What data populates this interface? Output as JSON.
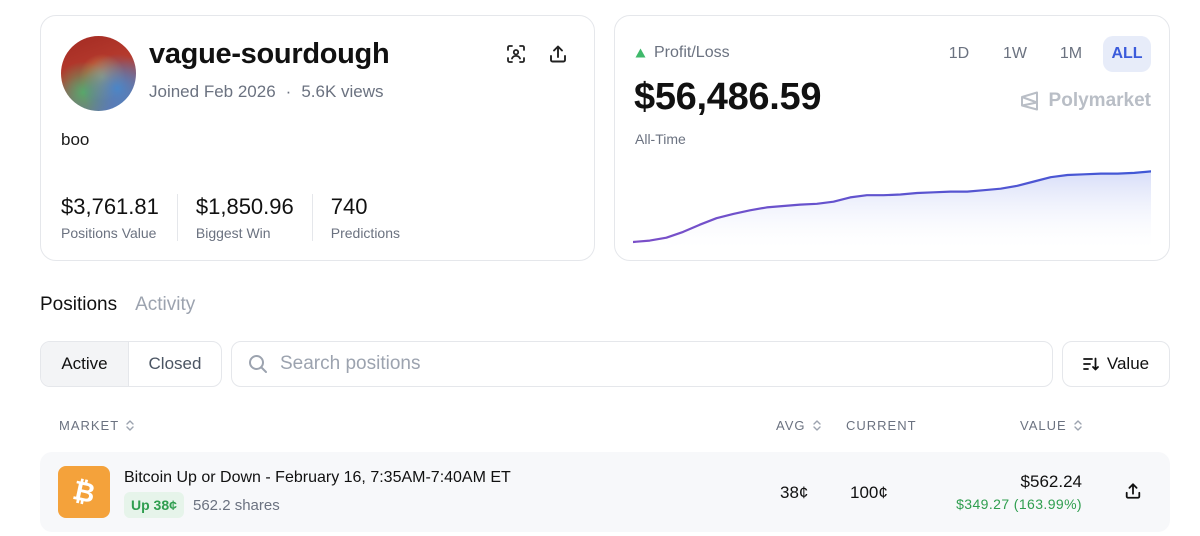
{
  "profile": {
    "username": "vague-sourdough",
    "joined": "Joined Feb 2026",
    "separator": "·",
    "views": "5.6K views",
    "bio": "boo",
    "stats": [
      {
        "value": "$3,761.81",
        "label": "Positions Value"
      },
      {
        "value": "$1,850.96",
        "label": "Biggest Win"
      },
      {
        "value": "740",
        "label": "Predictions"
      }
    ]
  },
  "pnl": {
    "label": "Profit/Loss",
    "value": "$56,486.59",
    "period": "All-Time",
    "brand": "Polymarket",
    "ranges": [
      "1D",
      "1W",
      "1M",
      "ALL"
    ],
    "active_range": "ALL",
    "colors": {
      "line": "#4a57d4",
      "fill": "#e3e7fb",
      "up": "#3fb96b"
    },
    "series": [
      0,
      0.02,
      0.06,
      0.14,
      0.24,
      0.33,
      0.39,
      0.44,
      0.48,
      0.5,
      0.52,
      0.53,
      0.56,
      0.62,
      0.65,
      0.65,
      0.66,
      0.68,
      0.69,
      0.7,
      0.7,
      0.72,
      0.74,
      0.78,
      0.84,
      0.9,
      0.93,
      0.94,
      0.95,
      0.95,
      0.96,
      0.98
    ]
  },
  "tabs": {
    "positions": "Positions",
    "activity": "Activity"
  },
  "filter": {
    "active": "Active",
    "closed": "Closed"
  },
  "search": {
    "placeholder": "Search positions"
  },
  "sort": {
    "label": "Value"
  },
  "table": {
    "headers": {
      "market": "MARKET",
      "avg": "AVG",
      "current": "CURRENT",
      "value": "VALUE"
    },
    "rows": [
      {
        "title": "Bitcoin Up or Down - February 16, 7:35AM-7:40AM ET",
        "outcome": "Up 38¢",
        "shares": "562.2 shares",
        "avg": "38¢",
        "current": "100¢",
        "value": "$562.24",
        "change": "$349.27 (163.99%)"
      }
    ]
  }
}
